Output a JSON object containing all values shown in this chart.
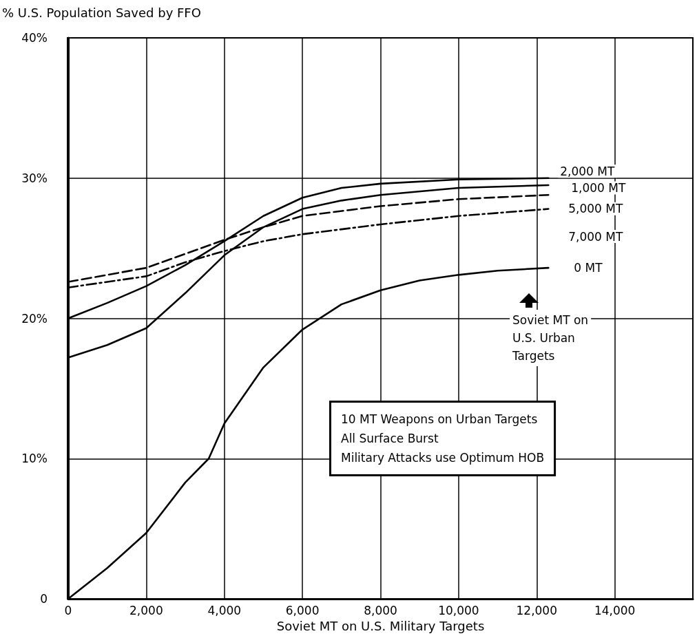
{
  "chart_data": {
    "type": "line",
    "xlabel": "Soviet MT on U.S. Military Targets",
    "ylabel": "% U.S. Population Saved by FFO",
    "xlim": [
      0,
      16000
    ],
    "xticks": [
      0,
      {
        "value": 2000,
        "label": "2,000"
      },
      {
        "value": 4000,
        "label": "4,000"
      },
      {
        "value": 6000,
        "label": "6,000"
      },
      {
        "value": 8000,
        "label": "8,000"
      },
      {
        "value": 10000,
        "label": "10,000"
      },
      {
        "value": 12000,
        "label": "12,000"
      },
      {
        "value": 14000,
        "label": "14,000"
      }
    ],
    "ylim": [
      0,
      40
    ],
    "yticks": [
      0,
      {
        "value": 10,
        "label": "10%"
      },
      {
        "value": 20,
        "label": "20%"
      },
      {
        "value": 30,
        "label": "30%"
      },
      {
        "value": 40,
        "label": "40%"
      }
    ],
    "grid": true,
    "legend": false,
    "marker": "none",
    "series": [
      {
        "name": "2,000 MT",
        "color": "#000000",
        "line_style": "solid",
        "x": [
          0,
          1000,
          2000,
          3000,
          4000,
          5000,
          6000,
          7000,
          8000,
          10000,
          12300
        ],
        "values": [
          20,
          21.1,
          22.3,
          23.8,
          25.5,
          27.3,
          28.6,
          29.3,
          29.6,
          29.9,
          30
        ]
      },
      {
        "name": "1,000 MT",
        "color": "#000000",
        "line_style": "solid",
        "x": [
          0,
          1000,
          2000,
          3000,
          4000,
          5000,
          6000,
          7000,
          8000,
          10000,
          12300
        ],
        "values": [
          17.2,
          18.1,
          19.3,
          21.8,
          24.5,
          26.5,
          27.8,
          28.4,
          28.8,
          29.3,
          29.5
        ]
      },
      {
        "name": "5,000 MT",
        "color": "#000000",
        "line_style": "dashed",
        "x": [
          0,
          2000,
          3000,
          4000,
          5000,
          6000,
          8000,
          10000,
          12300
        ],
        "values": [
          22.6,
          23.6,
          24.6,
          25.6,
          26.5,
          27.3,
          28,
          28.5,
          28.8
        ]
      },
      {
        "name": "7,000 MT",
        "color": "#000000",
        "line_style": "dashdot",
        "x": [
          0,
          2000,
          3000,
          4000,
          5000,
          6000,
          8000,
          10000,
          12300
        ],
        "values": [
          22.2,
          23,
          24,
          24.8,
          25.5,
          26,
          26.7,
          27.3,
          27.8
        ]
      },
      {
        "name": "0 MT",
        "color": "#000000",
        "line_style": "solid",
        "x": [
          0,
          1000,
          2000,
          3000,
          3600,
          4000,
          5000,
          6000,
          7000,
          8000,
          9000,
          10000,
          11000,
          12300
        ],
        "values": [
          0,
          2.2,
          4.7,
          8.3,
          10,
          12.5,
          16.5,
          19.2,
          21,
          22,
          22.7,
          23.1,
          23.4,
          23.6
        ]
      }
    ],
    "annotations": [
      "Soviet MT on\nU.S. Urban\nTargets",
      "10 MT Weapons on Urban Targets\nAll Surface Burst\nMilitary Attacks use Optimum HOB"
    ]
  }
}
